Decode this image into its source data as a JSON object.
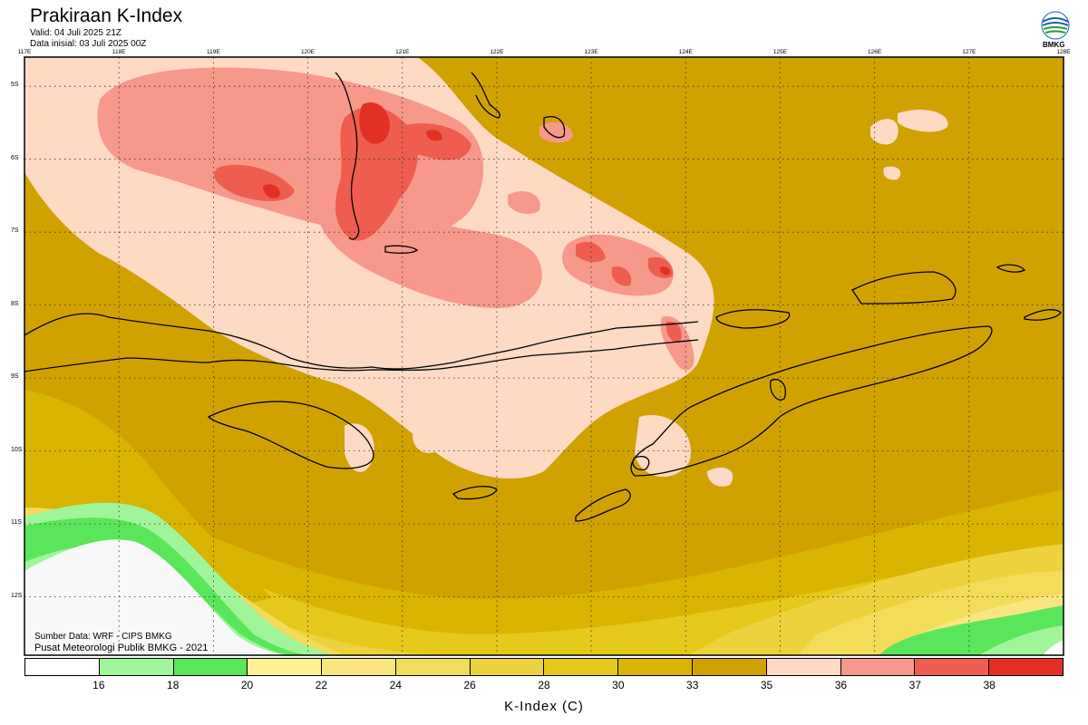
{
  "header": {
    "title": "Prakiraan K-Index",
    "valid": "Valid: 04 Juli 2025 21Z",
    "init": "Data inisial: 03 Juli 2025 00Z"
  },
  "logo": {
    "text": "BMKG"
  },
  "map": {
    "lon_labels": [
      "117E",
      "118E",
      "119E",
      "120E",
      "121E",
      "122E",
      "123E",
      "124E",
      "125E",
      "126E",
      "127E",
      "128E"
    ],
    "lat_labels": [
      "5S",
      "6S",
      "7S",
      "8S",
      "9S",
      "10S",
      "11S",
      "12S"
    ],
    "extent": {
      "lon_min": 117,
      "lon_max": 128,
      "lat_min": -12.8,
      "lat_max": -4.6
    }
  },
  "footer": {
    "source": "Sumber Data: WRF - CIPS BMKG",
    "center": "Pusat Meteorologi Publik BMKG - 2021"
  },
  "legend": {
    "title": "K-Index (C)",
    "labels": [
      "16",
      "18",
      "20",
      "22",
      "24",
      "26",
      "28",
      "30",
      "33",
      "35",
      "36",
      "37",
      "38"
    ],
    "colors": [
      "#ffffff",
      "#a0f59a",
      "#5ae65a",
      "#fff296",
      "#f9e680",
      "#f2dc5a",
      "#ecd23c",
      "#e4c81a",
      "#d9b400",
      "#cfa200",
      "#fed9c4",
      "#f6998a",
      "#ee5d50",
      "#e23024"
    ]
  }
}
